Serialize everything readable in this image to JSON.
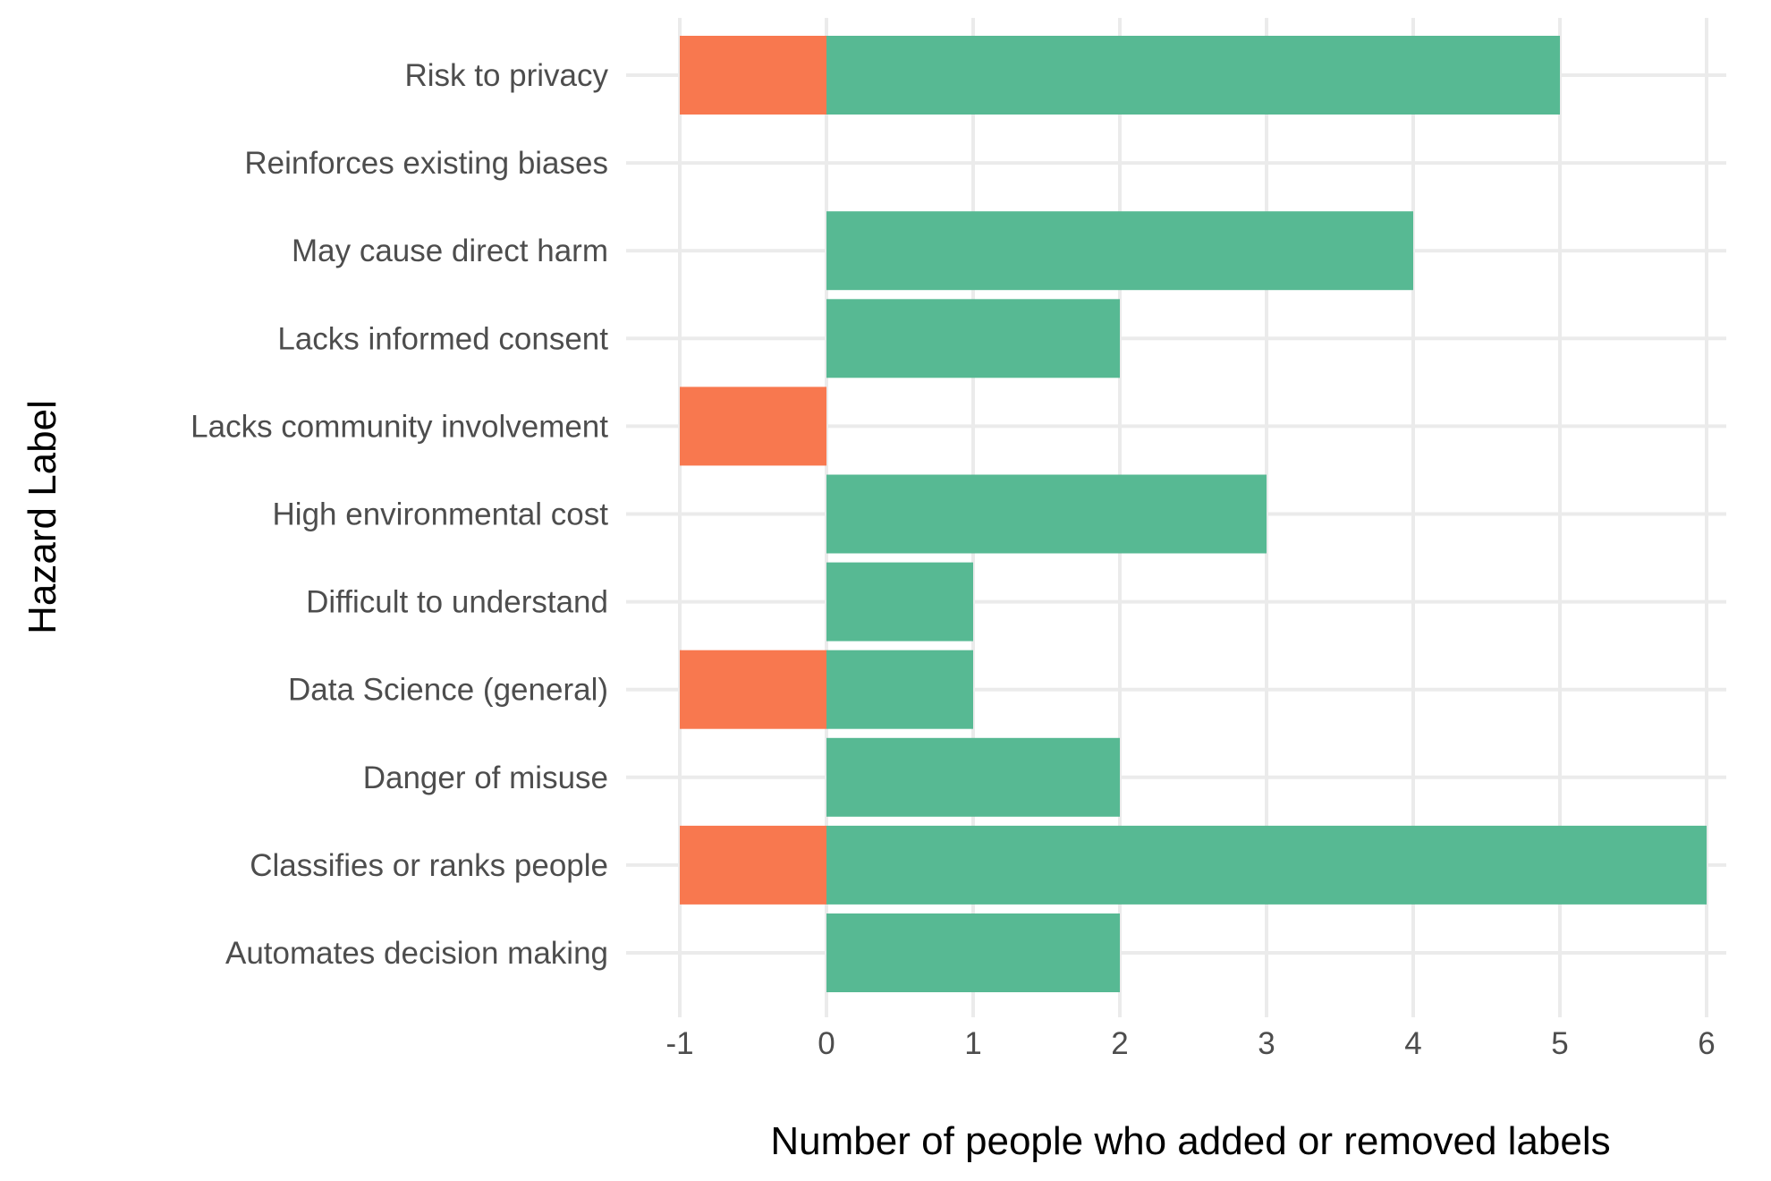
{
  "chart_data": {
    "type": "bar",
    "orientation": "horizontal",
    "stacked": true,
    "categories": [
      "Automates decision making",
      "Classifies or ranks people",
      "Danger of misuse",
      "Data Science (general)",
      "Difficult to understand",
      "High environmental cost",
      "Lacks community involvement",
      "Lacks informed consent",
      "May cause direct harm",
      "Reinforces existing biases",
      "Risk to privacy"
    ],
    "series": [
      {
        "values": [
          0,
          -1,
          0,
          -1,
          0,
          0,
          -1,
          0,
          0,
          0,
          -1
        ],
        "color": "#F8784F"
      },
      {
        "values": [
          2,
          6,
          2,
          1,
          1,
          3,
          0,
          2,
          4,
          0,
          5
        ],
        "color": "#57B993"
      }
    ],
    "xlabel": "Number of people who added or removed labels",
    "ylabel": "Hazard Label",
    "xlim": [
      -1,
      6
    ],
    "xticks": [
      -1,
      0,
      1,
      2,
      3,
      4,
      5,
      6
    ],
    "grid": true,
    "legend": "none"
  }
}
